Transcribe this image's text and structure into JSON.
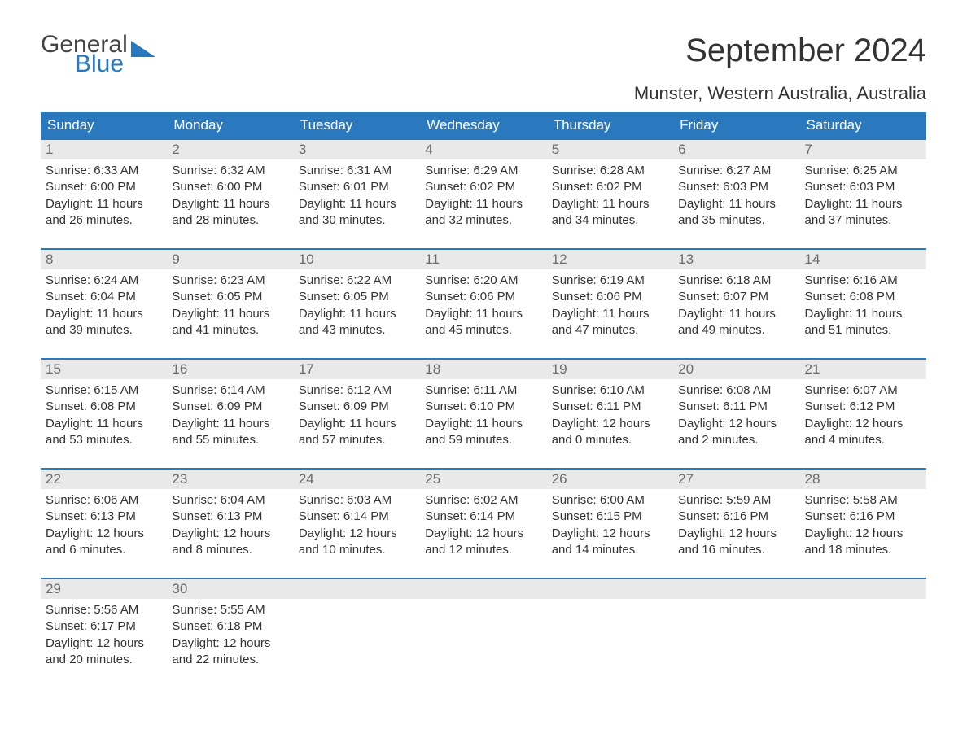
{
  "colors": {
    "header_bg": "#2a79bf",
    "header_text": "#ffffff",
    "daynum_bg": "#e9e9e9",
    "daynum_text": "#6b6b6b",
    "body_text": "#333333",
    "week_border": "#2a79bf",
    "page_bg": "#ffffff"
  },
  "typography": {
    "title_fontsize_pt": 30,
    "location_fontsize_pt": 17,
    "dow_fontsize_pt": 13,
    "daynum_fontsize_pt": 13,
    "body_fontsize_pt": 11
  },
  "logo": {
    "line1": "General",
    "line2": "Blue"
  },
  "title": "September 2024",
  "location": "Munster, Western Australia, Australia",
  "days_of_week": [
    "Sunday",
    "Monday",
    "Tuesday",
    "Wednesday",
    "Thursday",
    "Friday",
    "Saturday"
  ],
  "weeks": [
    [
      {
        "n": "1",
        "sunrise": "Sunrise: 6:33 AM",
        "sunset": "Sunset: 6:00 PM",
        "d1": "Daylight: 11 hours",
        "d2": "and 26 minutes."
      },
      {
        "n": "2",
        "sunrise": "Sunrise: 6:32 AM",
        "sunset": "Sunset: 6:00 PM",
        "d1": "Daylight: 11 hours",
        "d2": "and 28 minutes."
      },
      {
        "n": "3",
        "sunrise": "Sunrise: 6:31 AM",
        "sunset": "Sunset: 6:01 PM",
        "d1": "Daylight: 11 hours",
        "d2": "and 30 minutes."
      },
      {
        "n": "4",
        "sunrise": "Sunrise: 6:29 AM",
        "sunset": "Sunset: 6:02 PM",
        "d1": "Daylight: 11 hours",
        "d2": "and 32 minutes."
      },
      {
        "n": "5",
        "sunrise": "Sunrise: 6:28 AM",
        "sunset": "Sunset: 6:02 PM",
        "d1": "Daylight: 11 hours",
        "d2": "and 34 minutes."
      },
      {
        "n": "6",
        "sunrise": "Sunrise: 6:27 AM",
        "sunset": "Sunset: 6:03 PM",
        "d1": "Daylight: 11 hours",
        "d2": "and 35 minutes."
      },
      {
        "n": "7",
        "sunrise": "Sunrise: 6:25 AM",
        "sunset": "Sunset: 6:03 PM",
        "d1": "Daylight: 11 hours",
        "d2": "and 37 minutes."
      }
    ],
    [
      {
        "n": "8",
        "sunrise": "Sunrise: 6:24 AM",
        "sunset": "Sunset: 6:04 PM",
        "d1": "Daylight: 11 hours",
        "d2": "and 39 minutes."
      },
      {
        "n": "9",
        "sunrise": "Sunrise: 6:23 AM",
        "sunset": "Sunset: 6:05 PM",
        "d1": "Daylight: 11 hours",
        "d2": "and 41 minutes."
      },
      {
        "n": "10",
        "sunrise": "Sunrise: 6:22 AM",
        "sunset": "Sunset: 6:05 PM",
        "d1": "Daylight: 11 hours",
        "d2": "and 43 minutes."
      },
      {
        "n": "11",
        "sunrise": "Sunrise: 6:20 AM",
        "sunset": "Sunset: 6:06 PM",
        "d1": "Daylight: 11 hours",
        "d2": "and 45 minutes."
      },
      {
        "n": "12",
        "sunrise": "Sunrise: 6:19 AM",
        "sunset": "Sunset: 6:06 PM",
        "d1": "Daylight: 11 hours",
        "d2": "and 47 minutes."
      },
      {
        "n": "13",
        "sunrise": "Sunrise: 6:18 AM",
        "sunset": "Sunset: 6:07 PM",
        "d1": "Daylight: 11 hours",
        "d2": "and 49 minutes."
      },
      {
        "n": "14",
        "sunrise": "Sunrise: 6:16 AM",
        "sunset": "Sunset: 6:08 PM",
        "d1": "Daylight: 11 hours",
        "d2": "and 51 minutes."
      }
    ],
    [
      {
        "n": "15",
        "sunrise": "Sunrise: 6:15 AM",
        "sunset": "Sunset: 6:08 PM",
        "d1": "Daylight: 11 hours",
        "d2": "and 53 minutes."
      },
      {
        "n": "16",
        "sunrise": "Sunrise: 6:14 AM",
        "sunset": "Sunset: 6:09 PM",
        "d1": "Daylight: 11 hours",
        "d2": "and 55 minutes."
      },
      {
        "n": "17",
        "sunrise": "Sunrise: 6:12 AM",
        "sunset": "Sunset: 6:09 PM",
        "d1": "Daylight: 11 hours",
        "d2": "and 57 minutes."
      },
      {
        "n": "18",
        "sunrise": "Sunrise: 6:11 AM",
        "sunset": "Sunset: 6:10 PM",
        "d1": "Daylight: 11 hours",
        "d2": "and 59 minutes."
      },
      {
        "n": "19",
        "sunrise": "Sunrise: 6:10 AM",
        "sunset": "Sunset: 6:11 PM",
        "d1": "Daylight: 12 hours",
        "d2": "and 0 minutes."
      },
      {
        "n": "20",
        "sunrise": "Sunrise: 6:08 AM",
        "sunset": "Sunset: 6:11 PM",
        "d1": "Daylight: 12 hours",
        "d2": "and 2 minutes."
      },
      {
        "n": "21",
        "sunrise": "Sunrise: 6:07 AM",
        "sunset": "Sunset: 6:12 PM",
        "d1": "Daylight: 12 hours",
        "d2": "and 4 minutes."
      }
    ],
    [
      {
        "n": "22",
        "sunrise": "Sunrise: 6:06 AM",
        "sunset": "Sunset: 6:13 PM",
        "d1": "Daylight: 12 hours",
        "d2": "and 6 minutes."
      },
      {
        "n": "23",
        "sunrise": "Sunrise: 6:04 AM",
        "sunset": "Sunset: 6:13 PM",
        "d1": "Daylight: 12 hours",
        "d2": "and 8 minutes."
      },
      {
        "n": "24",
        "sunrise": "Sunrise: 6:03 AM",
        "sunset": "Sunset: 6:14 PM",
        "d1": "Daylight: 12 hours",
        "d2": "and 10 minutes."
      },
      {
        "n": "25",
        "sunrise": "Sunrise: 6:02 AM",
        "sunset": "Sunset: 6:14 PM",
        "d1": "Daylight: 12 hours",
        "d2": "and 12 minutes."
      },
      {
        "n": "26",
        "sunrise": "Sunrise: 6:00 AM",
        "sunset": "Sunset: 6:15 PM",
        "d1": "Daylight: 12 hours",
        "d2": "and 14 minutes."
      },
      {
        "n": "27",
        "sunrise": "Sunrise: 5:59 AM",
        "sunset": "Sunset: 6:16 PM",
        "d1": "Daylight: 12 hours",
        "d2": "and 16 minutes."
      },
      {
        "n": "28",
        "sunrise": "Sunrise: 5:58 AM",
        "sunset": "Sunset: 6:16 PM",
        "d1": "Daylight: 12 hours",
        "d2": "and 18 minutes."
      }
    ],
    [
      {
        "n": "29",
        "sunrise": "Sunrise: 5:56 AM",
        "sunset": "Sunset: 6:17 PM",
        "d1": "Daylight: 12 hours",
        "d2": "and 20 minutes."
      },
      {
        "n": "30",
        "sunrise": "Sunrise: 5:55 AM",
        "sunset": "Sunset: 6:18 PM",
        "d1": "Daylight: 12 hours",
        "d2": "and 22 minutes."
      },
      {
        "empty": true
      },
      {
        "empty": true
      },
      {
        "empty": true
      },
      {
        "empty": true
      },
      {
        "empty": true
      }
    ]
  ]
}
